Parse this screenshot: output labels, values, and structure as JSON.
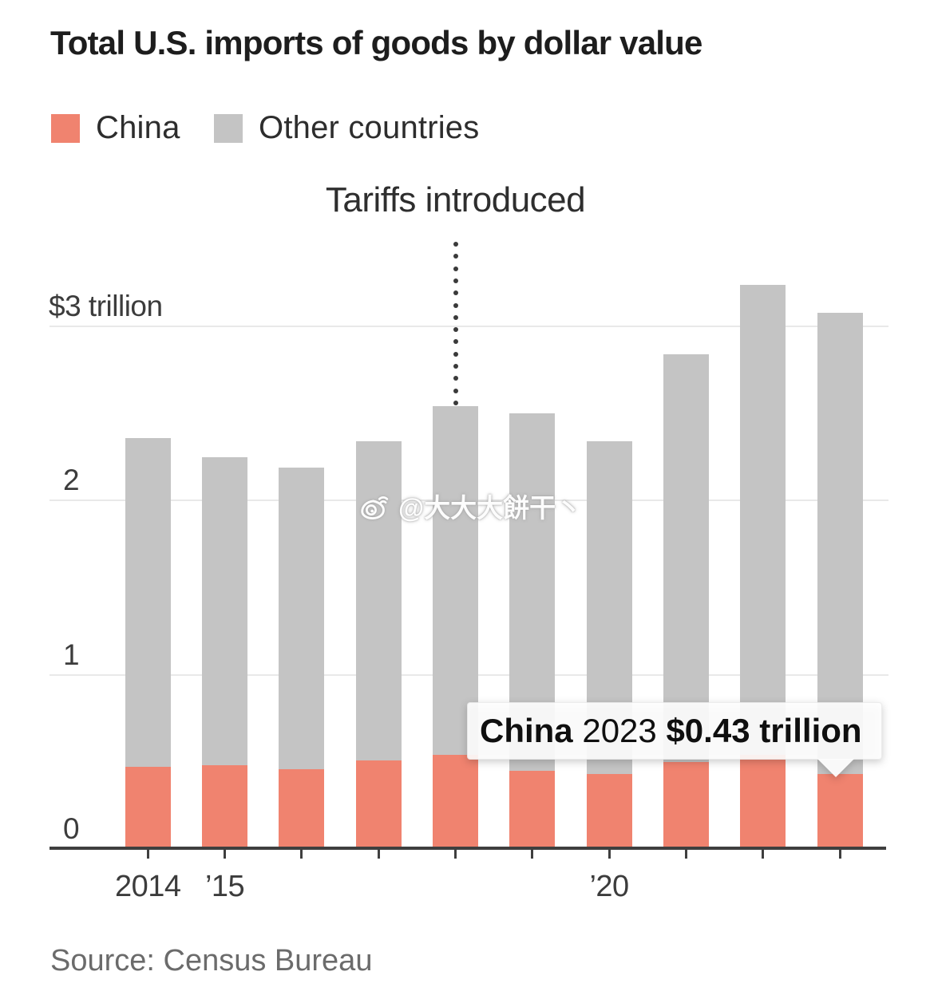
{
  "title": "Total U.S. imports of goods by dollar value",
  "legend": [
    {
      "label": "China",
      "color": "#f0836f"
    },
    {
      "label": "Other countries",
      "color": "#c4c4c4"
    }
  ],
  "annotation": {
    "text": "Tariffs introduced",
    "year": 2018
  },
  "watermark": {
    "icon": "weibo-icon",
    "text": "@大大大餅干丶"
  },
  "tooltip": {
    "series": "China",
    "year": "2023",
    "value": "$0.43 trillion"
  },
  "source": "Source: Census Bureau",
  "chart_data": {
    "type": "bar",
    "stacked": true,
    "title": "Total U.S. imports of goods by dollar value",
    "categories": [
      2014,
      2015,
      2016,
      2017,
      2018,
      2019,
      2020,
      2021,
      2022,
      2023
    ],
    "x_tick_labels": [
      "2014",
      "’15",
      "",
      "",
      "",
      "",
      "’20",
      "",
      "",
      ""
    ],
    "series": [
      {
        "name": "China",
        "color": "#f0836f",
        "values": [
          0.47,
          0.48,
          0.46,
          0.51,
          0.54,
          0.45,
          0.43,
          0.5,
          0.54,
          0.43
        ]
      },
      {
        "name": "Other countries",
        "color": "#c4c4c4",
        "values": [
          1.89,
          1.77,
          1.73,
          1.83,
          2.0,
          2.05,
          1.91,
          2.34,
          2.7,
          2.65
        ]
      }
    ],
    "y_ticks": [
      {
        "value": 3,
        "label": "$3 trillion"
      },
      {
        "value": 2,
        "label": "2"
      },
      {
        "value": 1,
        "label": "1"
      },
      {
        "value": 0,
        "label": "0"
      }
    ],
    "ylim": [
      0,
      3.4
    ],
    "grid": "horizontal",
    "legend_position": "top-left",
    "unit": "trillion USD"
  }
}
